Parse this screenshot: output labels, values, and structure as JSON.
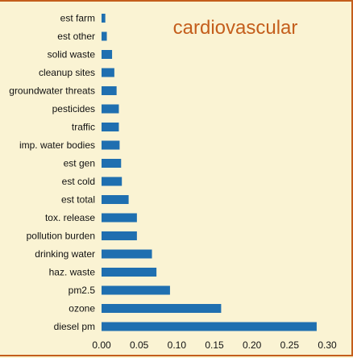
{
  "chart_data": {
    "type": "bar",
    "orientation": "horizontal",
    "title": "cardiovascular",
    "xlabel": "",
    "ylabel": "",
    "xlim": [
      0,
      0.3
    ],
    "x_ticks": [
      "0.00",
      "0.05",
      "0.10",
      "0.15",
      "0.20",
      "0.25",
      "0.30"
    ],
    "categories": [
      "est farm",
      "est other",
      "solid waste",
      "cleanup sites",
      "groundwater threats",
      "pesticides",
      "traffic",
      "imp. water bodies",
      "est gen",
      "est cold",
      "est total",
      "tox. release",
      "pollution burden",
      "drinking water",
      "haz. waste",
      "pm2.5",
      "ozone",
      "diesel pm"
    ],
    "values": [
      0.005,
      0.007,
      0.014,
      0.017,
      0.02,
      0.023,
      0.023,
      0.024,
      0.026,
      0.027,
      0.036,
      0.047,
      0.047,
      0.067,
      0.073,
      0.091,
      0.159,
      0.286
    ],
    "bar_color": "#1f6fb0",
    "grid": false,
    "legend": "none"
  }
}
